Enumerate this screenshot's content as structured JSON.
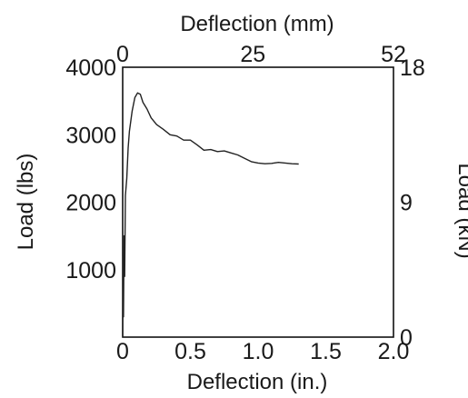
{
  "chart_data": {
    "type": "line",
    "title": "",
    "xlabel_bottom": "Deflection (in.)",
    "xlabel_top": "Deflection (mm)",
    "ylabel_left": "Load (lbs)",
    "ylabel_right": "Load (kN)",
    "xlim": [
      0,
      2.0
    ],
    "ylim": [
      0,
      4000
    ],
    "x_ticks": [
      0,
      0.5,
      1.0,
      1.5,
      2.0
    ],
    "x_tick_labels": [
      "0",
      "0.5",
      "1.0",
      "1.5",
      "2.0"
    ],
    "x_top_ticks": [
      0,
      25,
      52
    ],
    "x_top_tick_labels": [
      "0",
      "25",
      "52"
    ],
    "y_left_ticks": [
      1000,
      2000,
      3000,
      4000
    ],
    "y_left_tick_labels": [
      "1000",
      "2000",
      "3000",
      "4000"
    ],
    "y_right_ticks": [
      0,
      9,
      18
    ],
    "y_right_tick_labels": [
      "0",
      "9",
      "18"
    ],
    "grid": false,
    "series": [
      {
        "x": [
          0.0,
          0.003,
          0.006,
          0.01,
          0.015,
          0.02,
          0.03,
          0.04,
          0.05,
          0.07,
          0.09,
          0.11,
          0.13,
          0.15,
          0.18,
          0.21,
          0.25,
          0.3,
          0.35,
          0.4,
          0.45,
          0.5,
          0.55,
          0.6,
          0.65,
          0.7,
          0.75,
          0.8,
          0.85,
          0.9,
          0.95,
          1.0,
          1.05,
          1.1,
          1.15,
          1.2,
          1.25,
          1.3
        ],
        "y": [
          0,
          1200,
          300,
          1500,
          900,
          2100,
          2350,
          2800,
          3050,
          3350,
          3550,
          3620,
          3600,
          3480,
          3380,
          3250,
          3150,
          3080,
          3000,
          2980,
          2920,
          2920,
          2850,
          2770,
          2780,
          2750,
          2760,
          2730,
          2700,
          2650,
          2600,
          2580,
          2570,
          2575,
          2590,
          2580,
          2570,
          2565
        ]
      }
    ]
  }
}
